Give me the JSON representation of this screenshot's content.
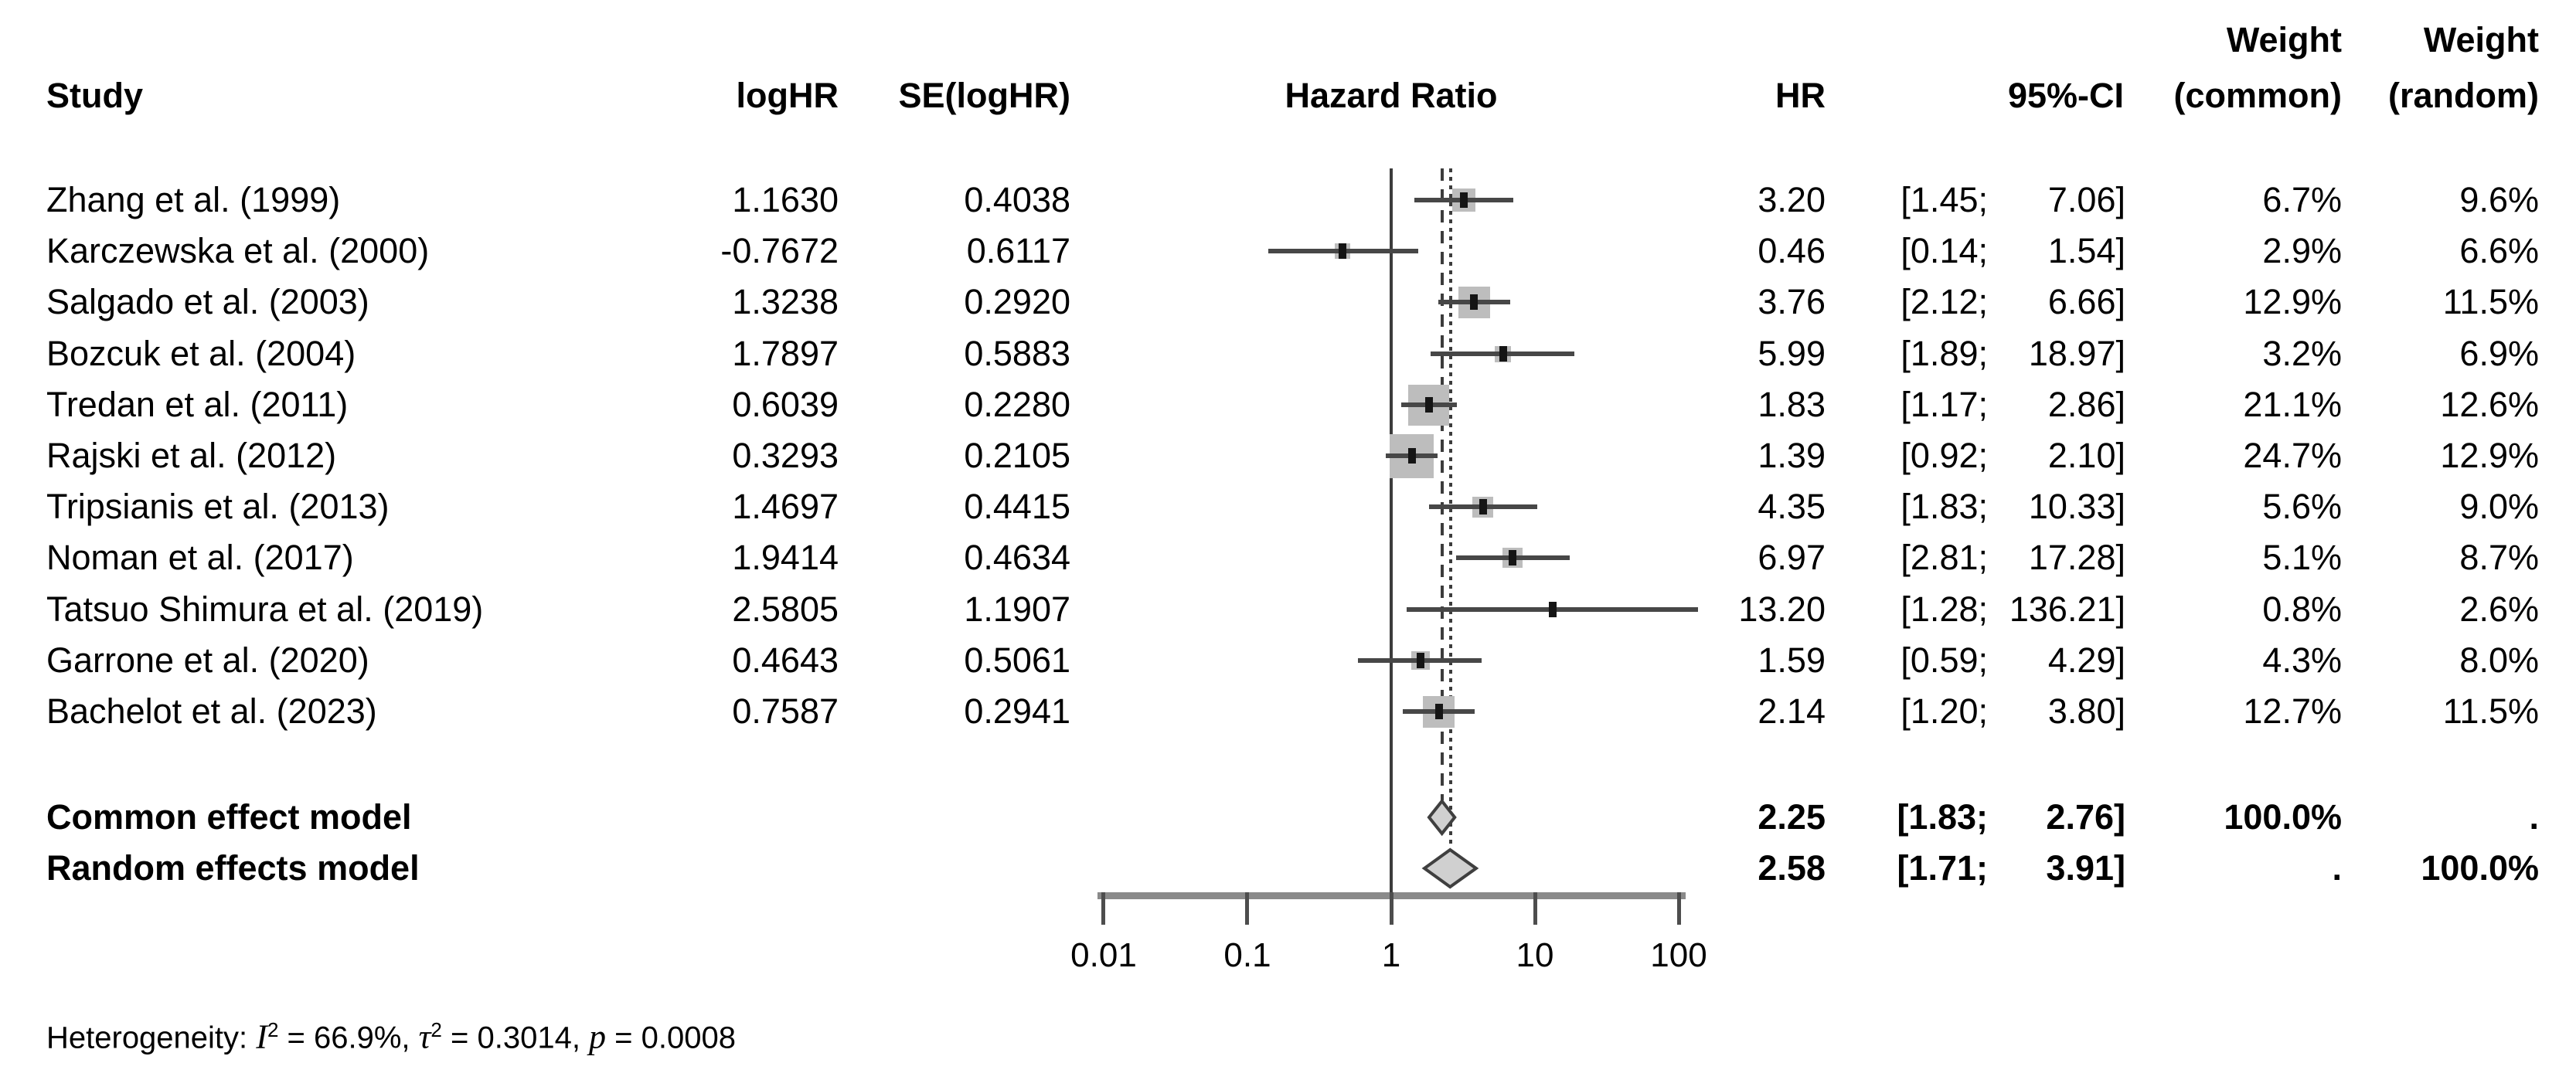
{
  "header": {
    "col_study": "Study",
    "col_loghr": "logHR",
    "col_se": "SE(logHR)",
    "col_plot": "Hazard Ratio",
    "col_hr": "HR",
    "col_ci": "95%-CI",
    "weight_top_common": "Weight",
    "weight_top_random": "Weight",
    "col_weight_common": "(common)",
    "col_weight_random": "(random)"
  },
  "table": {
    "rows": [
      {
        "label": "Zhang et al. (1999)",
        "loghr": "1.1630",
        "se": "0.4038",
        "hr": "3.20",
        "ci_low": "[1.45;",
        "ci_high": "7.06]",
        "wc": "6.7%",
        "wr": "9.6%"
      },
      {
        "label": "Karczewska et al. (2000)",
        "loghr": "-0.7672",
        "se": "0.6117",
        "hr": "0.46",
        "ci_low": "[0.14;",
        "ci_high": "1.54]",
        "wc": "2.9%",
        "wr": "6.6%"
      },
      {
        "label": "Salgado et al. (2003)",
        "loghr": "1.3238",
        "se": "0.2920",
        "hr": "3.76",
        "ci_low": "[2.12;",
        "ci_high": "6.66]",
        "wc": "12.9%",
        "wr": "11.5%"
      },
      {
        "label": "Bozcuk et al. (2004)",
        "loghr": "1.7897",
        "se": "0.5883",
        "hr": "5.99",
        "ci_low": "[1.89;",
        "ci_high": "18.97]",
        "wc": "3.2%",
        "wr": "6.9%"
      },
      {
        "label": "Tredan et al. (2011)",
        "loghr": "0.6039",
        "se": "0.2280",
        "hr": "1.83",
        "ci_low": "[1.17;",
        "ci_high": "2.86]",
        "wc": "21.1%",
        "wr": "12.6%"
      },
      {
        "label": "Rajski et al. (2012)",
        "loghr": "0.3293",
        "se": "0.2105",
        "hr": "1.39",
        "ci_low": "[0.92;",
        "ci_high": "2.10]",
        "wc": "24.7%",
        "wr": "12.9%"
      },
      {
        "label": "Tripsianis et al. (2013)",
        "loghr": "1.4697",
        "se": "0.4415",
        "hr": "4.35",
        "ci_low": "[1.83;",
        "ci_high": "10.33]",
        "wc": "5.6%",
        "wr": "9.0%"
      },
      {
        "label": "Noman et al. (2017)",
        "loghr": "1.9414",
        "se": "0.4634",
        "hr": "6.97",
        "ci_low": "[2.81;",
        "ci_high": "17.28]",
        "wc": "5.1%",
        "wr": "8.7%"
      },
      {
        "label": "Tatsuo Shimura et al. (2019)",
        "loghr": "2.5805",
        "se": "1.1907",
        "hr": "13.20",
        "ci_low": "[1.28;",
        "ci_high": "136.21]",
        "wc": "0.8%",
        "wr": "2.6%"
      },
      {
        "label": "Garrone et al. (2020)",
        "loghr": "0.4643",
        "se": "0.5061",
        "hr": "1.59",
        "ci_low": "[0.59;",
        "ci_high": "4.29]",
        "wc": "4.3%",
        "wr": "8.0%"
      },
      {
        "label": "Bachelot et al. (2023)",
        "loghr": "0.7587",
        "se": "0.2941",
        "hr": "2.14",
        "ci_low": "[1.20;",
        "ci_high": "3.80]",
        "wc": "12.7%",
        "wr": "11.5%"
      }
    ],
    "summary_rows": [
      {
        "label": "Common effect model",
        "hr": "2.25",
        "ci_low": "[1.83;",
        "ci_high": "2.76]",
        "wc": "100.0%",
        "wr": "."
      },
      {
        "label": "Random effects model",
        "hr": "2.58",
        "ci_low": "[1.71;",
        "ci_high": "3.91]",
        "wc": ".",
        "wr": "100.0%"
      }
    ]
  },
  "axis": {
    "ticks": [
      "0.01",
      "0.1",
      "1",
      "10",
      "100"
    ]
  },
  "heterogeneity": {
    "prefix": "Heterogeneity: ",
    "i_sym": "I",
    "i_sup": "2",
    "i_eq": " = ",
    "i_val": "66.9%",
    "sep1": ", ",
    "tau_sym": "τ",
    "tau_sup": "2",
    "tau_eq": " = ",
    "tau_val": "0.3014",
    "sep2": ", ",
    "p_sym": "p",
    "p_eq": " = ",
    "p_val": "0.0008"
  },
  "chart_data": {
    "type": "forest",
    "title": "",
    "xlabel": "Hazard Ratio",
    "x_scale": "log10",
    "x_ticks": [
      0.01,
      0.1,
      1,
      10,
      100
    ],
    "reference_line": 1.0,
    "grid": false,
    "studies": [
      {
        "study": "Zhang et al. (1999)",
        "logHR": 1.163,
        "SE": 0.4038,
        "HR": 3.2,
        "ci_low": 1.45,
        "ci_high": 7.06,
        "weight_common_pct": 6.7,
        "weight_random_pct": 9.6
      },
      {
        "study": "Karczewska et al. (2000)",
        "logHR": -0.7672,
        "SE": 0.6117,
        "HR": 0.46,
        "ci_low": 0.14,
        "ci_high": 1.54,
        "weight_common_pct": 2.9,
        "weight_random_pct": 6.6
      },
      {
        "study": "Salgado et al. (2003)",
        "logHR": 1.3238,
        "SE": 0.292,
        "HR": 3.76,
        "ci_low": 2.12,
        "ci_high": 6.66,
        "weight_common_pct": 12.9,
        "weight_random_pct": 11.5
      },
      {
        "study": "Bozcuk et al. (2004)",
        "logHR": 1.7897,
        "SE": 0.5883,
        "HR": 5.99,
        "ci_low": 1.89,
        "ci_high": 18.97,
        "weight_common_pct": 3.2,
        "weight_random_pct": 6.9
      },
      {
        "study": "Tredan et al. (2011)",
        "logHR": 0.6039,
        "SE": 0.228,
        "HR": 1.83,
        "ci_low": 1.17,
        "ci_high": 2.86,
        "weight_common_pct": 21.1,
        "weight_random_pct": 12.6
      },
      {
        "study": "Rajski et al. (2012)",
        "logHR": 0.3293,
        "SE": 0.2105,
        "HR": 1.39,
        "ci_low": 0.92,
        "ci_high": 2.1,
        "weight_common_pct": 24.7,
        "weight_random_pct": 12.9
      },
      {
        "study": "Tripsianis et al. (2013)",
        "logHR": 1.4697,
        "SE": 0.4415,
        "HR": 4.35,
        "ci_low": 1.83,
        "ci_high": 10.33,
        "weight_common_pct": 5.6,
        "weight_random_pct": 9.0
      },
      {
        "study": "Noman et al. (2017)",
        "logHR": 1.9414,
        "SE": 0.4634,
        "HR": 6.97,
        "ci_low": 2.81,
        "ci_high": 17.28,
        "weight_common_pct": 5.1,
        "weight_random_pct": 8.7
      },
      {
        "study": "Tatsuo Shimura et al. (2019)",
        "logHR": 2.5805,
        "SE": 1.1907,
        "HR": 13.2,
        "ci_low": 1.28,
        "ci_high": 136.21,
        "weight_common_pct": 0.8,
        "weight_random_pct": 2.6
      },
      {
        "study": "Garrone et al. (2020)",
        "logHR": 0.4643,
        "SE": 0.5061,
        "HR": 1.59,
        "ci_low": 0.59,
        "ci_high": 4.29,
        "weight_common_pct": 4.3,
        "weight_random_pct": 8.0
      },
      {
        "study": "Bachelot et al. (2023)",
        "logHR": 0.7587,
        "SE": 0.2941,
        "HR": 2.14,
        "ci_low": 1.2,
        "ci_high": 3.8,
        "weight_common_pct": 12.7,
        "weight_random_pct": 11.5
      }
    ],
    "summaries": [
      {
        "model": "Common effect model",
        "HR": 2.25,
        "ci_low": 1.83,
        "ci_high": 2.76,
        "weight_common_pct": 100.0,
        "weight_random_pct": null,
        "line_style": "dashed"
      },
      {
        "model": "Random effects model",
        "HR": 2.58,
        "ci_low": 1.71,
        "ci_high": 3.91,
        "weight_common_pct": null,
        "weight_random_pct": 100.0,
        "line_style": "dotted"
      }
    ],
    "heterogeneity": {
      "I2_pct": 66.9,
      "tau2": 0.3014,
      "p": 0.0008
    }
  }
}
